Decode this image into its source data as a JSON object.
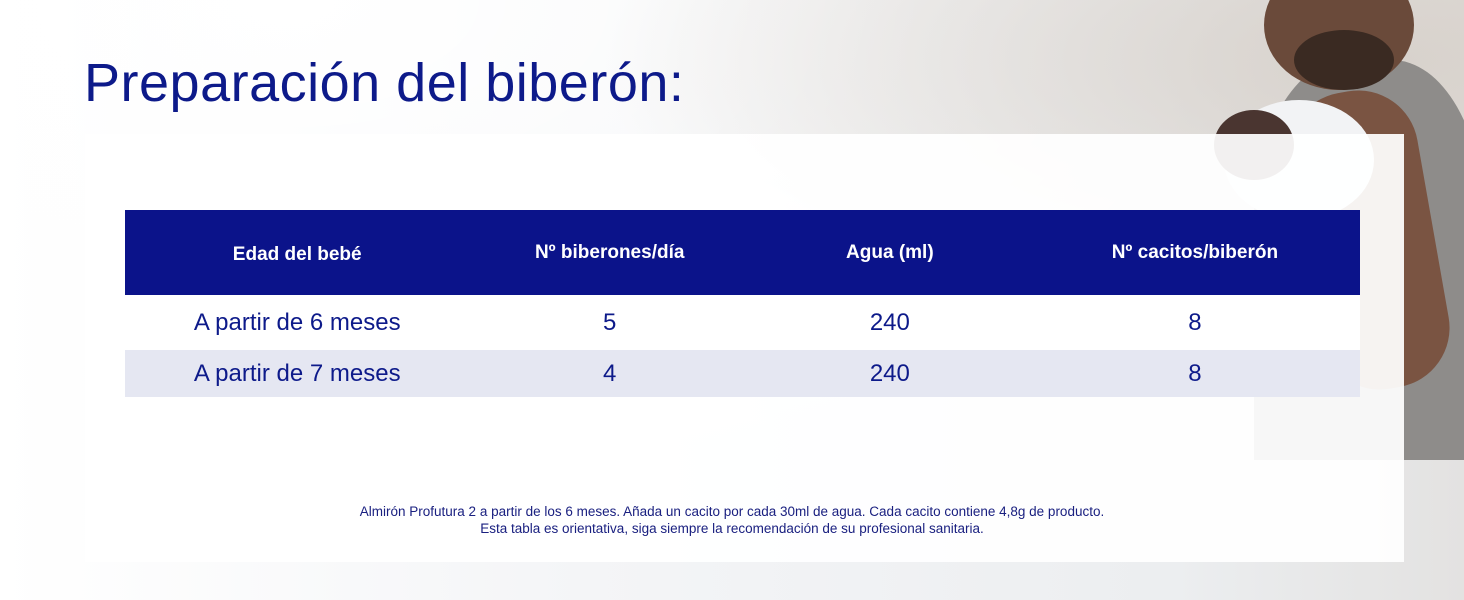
{
  "title": "Preparación del biberón:",
  "table": {
    "headers": [
      "Edad del bebé",
      "Nº biberones/día",
      "Agua (ml)",
      "Nº cacitos/biberón"
    ],
    "rows": [
      [
        "A partir de 6 meses",
        "5",
        "240",
        "8"
      ],
      [
        "A partir de 7 meses",
        "4",
        "240",
        "8"
      ]
    ]
  },
  "footnote": {
    "line1": "Almirón Profutura 2 a partir de los 6 meses. Añada un cacito por cada 30ml de agua. Cada cacito contiene 4,8g de producto.",
    "line2": "Esta tabla es orientativa, siga siempre la recomendación de su profesional sanitaria."
  },
  "colors": {
    "brand_blue": "#0b138a",
    "row_alt": "#e5e7f2"
  }
}
